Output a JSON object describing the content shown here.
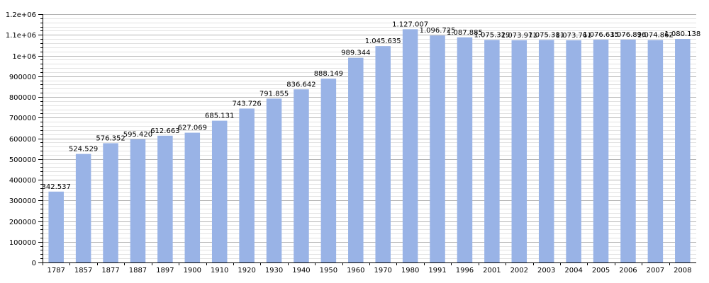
{
  "chart_data": {
    "type": "bar",
    "title": "",
    "xlabel": "",
    "ylabel": "",
    "ylim": [
      0,
      1200000
    ],
    "yticks": [
      0,
      100000,
      200000,
      300000,
      400000,
      500000,
      600000,
      700000,
      800000,
      900000,
      1000000,
      1100000,
      1200000
    ],
    "ytick_labels": [
      "0",
      "100000",
      "200000",
      "300000",
      "400000",
      "500000",
      "600000",
      "700000",
      "800000",
      "900000",
      "1e+06",
      "1.1e+06",
      "1.2e+06"
    ],
    "grid": true,
    "bar_color": "#99b3e6",
    "categories": [
      "1787",
      "1857",
      "1877",
      "1887",
      "1897",
      "1900",
      "1910",
      "1920",
      "1930",
      "1940",
      "1950",
      "1960",
      "1970",
      "1980",
      "1991",
      "1996",
      "2001",
      "2002",
      "2003",
      "2004",
      "2005",
      "2006",
      "2007",
      "2008"
    ],
    "values": [
      342537,
      524529,
      576352,
      595420,
      612663,
      627069,
      685131,
      743726,
      791855,
      836642,
      888149,
      989344,
      1045635,
      1127007,
      1096725,
      1087885,
      1075329,
      1073971,
      1075381,
      1073761,
      1076635,
      1076896,
      1074862,
      1080138
    ],
    "value_labels": [
      "342.537",
      "524.529",
      "576.352",
      "595.420",
      "612.663",
      "627.069",
      "685.131",
      "743.726",
      "791.855",
      "836.642",
      "888.149",
      "989.344",
      "1.045.635",
      "1.127.007",
      "1.096.725",
      "1.087.885",
      "1.075.329",
      "1.073.971",
      "1.075.381",
      "1.073.761",
      "1.076.635",
      "1.076.896",
      "1.074.862",
      "1.080.138"
    ]
  }
}
